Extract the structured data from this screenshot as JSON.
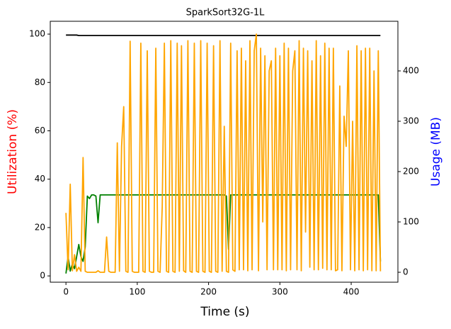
{
  "chart_data": {
    "type": "line",
    "title": "SparkSort32G-1L",
    "x_label": "Time (s)",
    "y_label": "Utilization (%)",
    "y2_label": "Usage (MB)",
    "y_label_color": "#ff0000",
    "y2_label_color": "#0000ff",
    "xlim": [
      -22,
      465.5
    ],
    "xticks": [
      0,
      100,
      200,
      300,
      400
    ],
    "ylim": [
      -2.6,
      105.3
    ],
    "yticks": [
      0,
      20,
      40,
      60,
      80,
      100
    ],
    "y2lim": [
      -19.7,
      498.6
    ],
    "y2ticks": [
      0,
      100,
      200,
      300,
      400
    ],
    "x": [
      0,
      3,
      6,
      9,
      12,
      15,
      18,
      21,
      24,
      27,
      30,
      33,
      36,
      39,
      42,
      45,
      48,
      51,
      54,
      57,
      60,
      63,
      66,
      69,
      72,
      75,
      78,
      81,
      84,
      87,
      90,
      93,
      96,
      99,
      102,
      105,
      108,
      111,
      114,
      117,
      120,
      123,
      126,
      129,
      132,
      135,
      138,
      141,
      144,
      147,
      150,
      153,
      156,
      159,
      162,
      165,
      168,
      171,
      174,
      177,
      180,
      183,
      186,
      189,
      192,
      195,
      198,
      201,
      204,
      207,
      210,
      213,
      216,
      219,
      222,
      225,
      228,
      231,
      234,
      237,
      240,
      243,
      246,
      249,
      252,
      255,
      258,
      261,
      264,
      267,
      270,
      273,
      276,
      279,
      282,
      285,
      288,
      291,
      294,
      297,
      300,
      303,
      306,
      309,
      312,
      315,
      318,
      321,
      324,
      327,
      330,
      333,
      336,
      339,
      342,
      345,
      348,
      351,
      354,
      357,
      360,
      363,
      366,
      369,
      372,
      375,
      378,
      381,
      384,
      387,
      390,
      393,
      396,
      399,
      402,
      405,
      408,
      411,
      414,
      417,
      420,
      423,
      426,
      429,
      432,
      435,
      438,
      441
    ],
    "series": [
      {
        "color": "#000000",
        "axis": "y",
        "values": [
          99.6,
          99.6,
          99.6,
          99.6,
          99.6,
          99.6,
          99.4,
          99.4,
          99.4,
          99.4,
          99.4,
          99.4,
          99.4,
          99.4,
          99.4,
          99.4,
          99.4,
          99.4,
          99.4,
          99.4,
          99.4,
          99.4,
          99.4,
          99.4,
          99.4,
          99.4,
          99.4,
          99.4,
          99.4,
          99.4,
          99.4,
          99.4,
          99.4,
          99.4,
          99.4,
          99.4,
          99.4,
          99.4,
          99.4,
          99.4,
          99.4,
          99.4,
          99.4,
          99.4,
          99.4,
          99.4,
          99.4,
          99.4,
          99.4,
          99.4,
          99.4,
          99.4,
          99.4,
          99.4,
          99.4,
          99.4,
          99.4,
          99.4,
          99.4,
          99.4,
          99.4,
          99.4,
          99.4,
          99.4,
          99.4,
          99.4,
          99.4,
          99.4,
          99.4,
          99.4,
          99.4,
          99.4,
          99.4,
          99.4,
          99.4,
          99.4,
          99.4,
          99.4,
          99.4,
          99.4,
          99.4,
          99.4,
          99.4,
          99.4,
          99.4,
          99.4,
          99.4,
          99.4,
          99.4,
          99.4,
          99.4,
          99.4,
          99.4,
          99.4,
          99.4,
          99.4,
          99.4,
          99.4,
          99.4,
          99.4,
          99.4,
          99.4,
          99.4,
          99.4,
          99.4,
          99.4,
          99.4,
          99.4,
          99.4,
          99.4,
          99.4,
          99.4,
          99.4,
          99.4,
          99.4,
          99.4,
          99.4,
          99.4,
          99.4,
          99.4,
          99.4,
          99.4,
          99.4,
          99.4,
          99.4,
          99.4,
          99.4,
          99.4,
          99.4,
          99.4,
          99.4,
          99.4,
          99.4,
          99.4,
          99.4,
          99.4,
          99.4,
          99.4,
          99.4,
          99.4,
          99.4,
          99.4,
          99.4,
          99.4,
          99.4,
          99.4,
          99.4,
          99.4
        ]
      },
      {
        "color": "#008000",
        "axis": "y",
        "values": [
          1,
          8,
          2,
          5,
          3,
          8,
          13,
          8,
          6,
          12,
          33,
          32,
          33.5,
          33.5,
          33,
          22,
          33.5,
          33.5,
          33.5,
          33.5,
          33.5,
          33.5,
          33.5,
          33.5,
          33.5,
          33.5,
          33.5,
          33.5,
          33.5,
          33.5,
          33.5,
          33.5,
          33.5,
          33.5,
          33.5,
          33.5,
          33.5,
          33.5,
          33.5,
          33.5,
          33.5,
          33.5,
          33.5,
          33.5,
          33.5,
          33.5,
          33.5,
          33.5,
          33.5,
          33.5,
          33.5,
          33.5,
          33.5,
          33.5,
          33.5,
          33.5,
          33.5,
          33.5,
          33.5,
          33.5,
          33.5,
          33.5,
          33.5,
          33.5,
          33.5,
          33.5,
          33.5,
          33.5,
          33.5,
          33.5,
          33.5,
          33.5,
          33.5,
          33.5,
          33.5,
          33,
          11,
          33.5,
          33.5,
          33.5,
          33.5,
          33.5,
          33.5,
          33.5,
          33.5,
          33.5,
          33.5,
          33.5,
          33.5,
          33.5,
          33.5,
          33.5,
          33.5,
          33.5,
          33.5,
          33.5,
          33.5,
          33.5,
          33.5,
          33.5,
          33.5,
          33.5,
          33.5,
          33.5,
          33.5,
          33.5,
          33.5,
          33.5,
          33.5,
          33.5,
          33.5,
          33.5,
          33.5,
          33.5,
          33.5,
          33.5,
          33.5,
          33.5,
          33.5,
          33.5,
          33.5,
          33.5,
          33.5,
          33.5,
          33.5,
          33.5,
          33.5,
          33.5,
          33.5,
          33.5,
          33.5,
          33.5,
          33.5,
          33.5,
          33.5,
          33.5,
          33.5,
          33.5,
          33.5,
          33.5,
          33.5,
          33.5,
          33.5,
          33.5,
          33.5,
          33.5,
          33.5,
          6
        ]
      },
      {
        "color": "#ffa500",
        "axis": "y2",
        "values": [
          118,
          5,
          175,
          3,
          35,
          2,
          10,
          2,
          228,
          2,
          0,
          0,
          0,
          0,
          0,
          3,
          0,
          0,
          0,
          70,
          2,
          0,
          0,
          0,
          257,
          2,
          250,
          329,
          2,
          0,
          459,
          2,
          0,
          0,
          0,
          455,
          2,
          0,
          440,
          2,
          0,
          0,
          445,
          2,
          0,
          130,
          455,
          2,
          0,
          460,
          2,
          0,
          455,
          2,
          450,
          3,
          0,
          460,
          2,
          0,
          455,
          2,
          0,
          460,
          2,
          0,
          455,
          2,
          0,
          450,
          2,
          0,
          460,
          2,
          290,
          2,
          0,
          455,
          5,
          2,
          440,
          5,
          445,
          5,
          420,
          3,
          460,
          5,
          440,
          473,
          3,
          445,
          100,
          430,
          5,
          400,
          420,
          5,
          445,
          5,
          430,
          5,
          455,
          3,
          445,
          5,
          400,
          440,
          5,
          460,
          3,
          445,
          80,
          440,
          10,
          420,
          5,
          460,
          5,
          430,
          8,
          455,
          5,
          445,
          5,
          445,
          3,
          5,
          370,
          3,
          310,
          250,
          440,
          5,
          300,
          3,
          450,
          5,
          440,
          3,
          445,
          5,
          445,
          3,
          400,
          3,
          440,
          2
        ]
      }
    ]
  }
}
